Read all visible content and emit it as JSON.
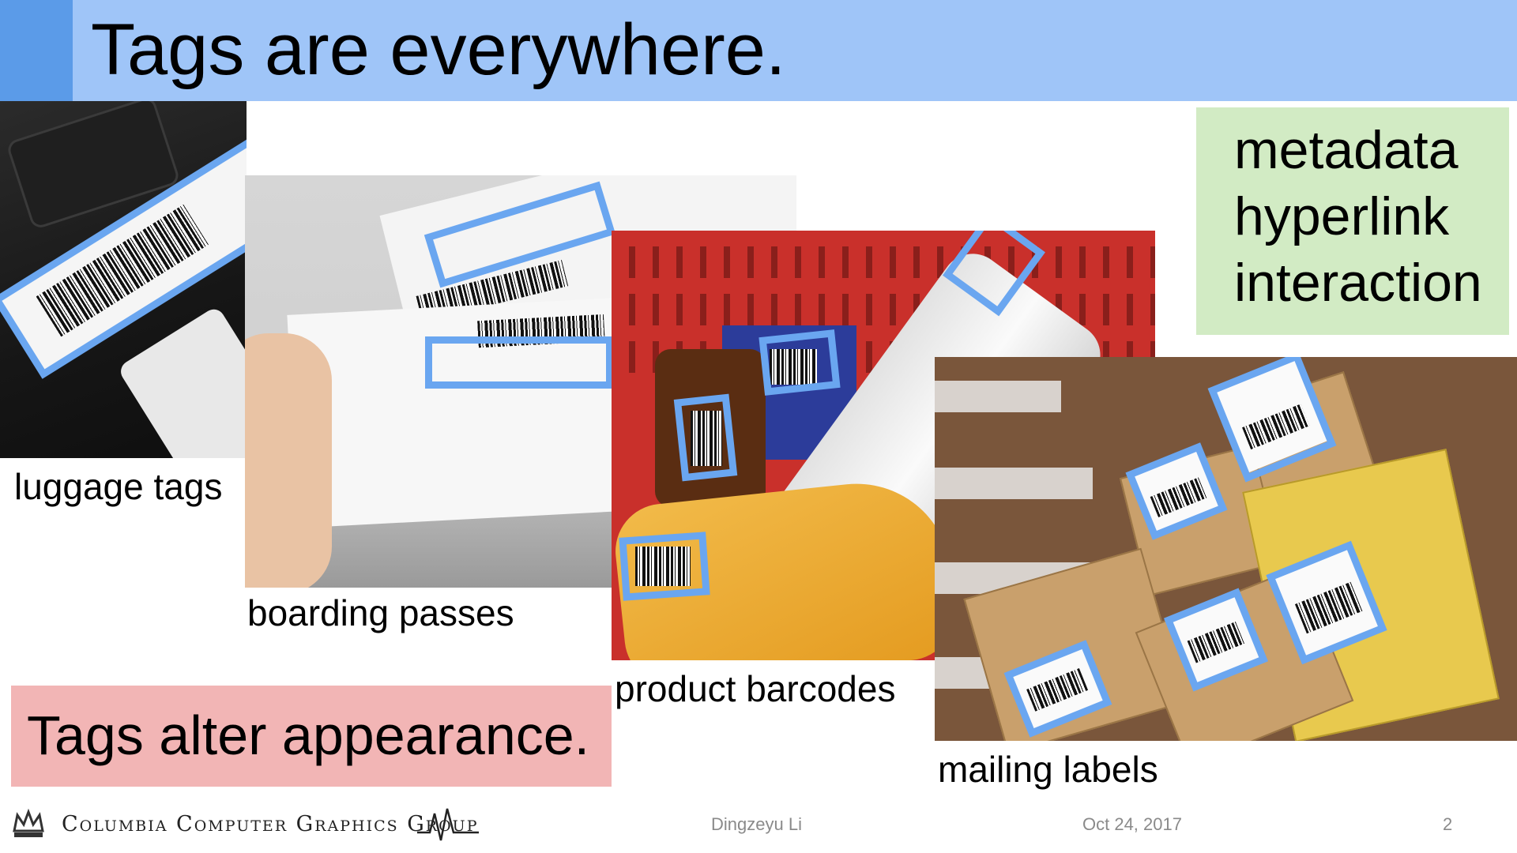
{
  "slide": {
    "title": "Tags are everywhere.",
    "features": [
      "metadata",
      "hyperlink",
      "interaction"
    ],
    "alter_text": "Tags alter appearance.",
    "captions": {
      "luggage": "luggage tags",
      "boarding": "boarding passes",
      "product": "product barcodes",
      "mailing": "mailing labels"
    }
  },
  "footer": {
    "logo_text": "Columbia Computer Graphics Group",
    "author": "Dingzeyu Li",
    "date": "Oct 24, 2017",
    "page_number": "2"
  },
  "colors": {
    "title_bar": "#9fc5f8",
    "title_accent": "#5b9be8",
    "features_box": "#d2ebc4",
    "alter_box": "#f2b5b5",
    "tag_outline": "#6aa6f0"
  }
}
